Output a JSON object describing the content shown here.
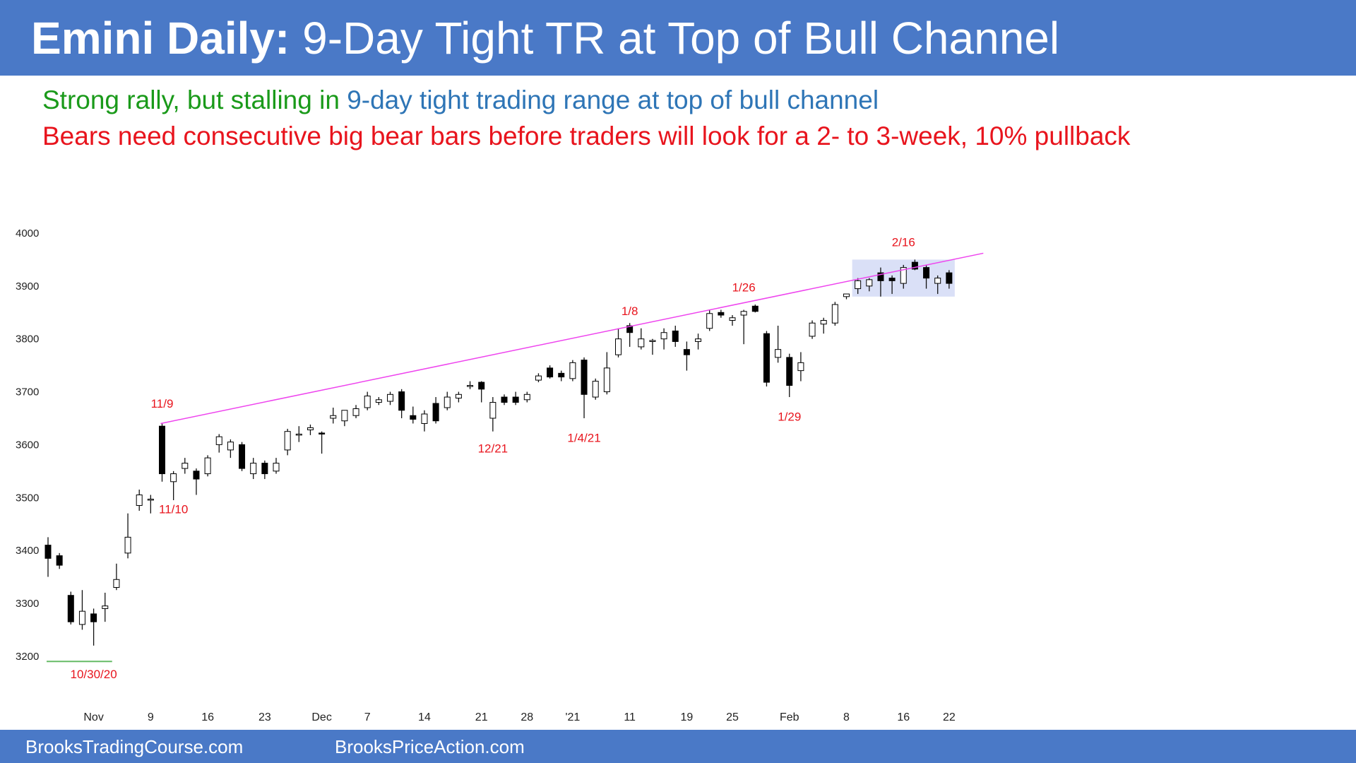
{
  "header": {
    "title_bold": "Emini Daily:",
    "title_rest": "9-Day Tight TR at Top of Bull Channel"
  },
  "subtitle": {
    "line1_part1": "Strong rally, but stalling in",
    "line1_part2": "9-day tight trading range at top of bull channel",
    "line2": "Bears need consecutive big bear bars before traders will look for a 2- to 3-week, 10% pullback"
  },
  "colors": {
    "header_bg": "#4a79c7",
    "green_text": "#1a9a1a",
    "blue_text": "#2e75b6",
    "red_text": "#e8141d",
    "channel_line": "#ee44ee",
    "range_box": "#cdd6f4",
    "support_line": "#66bb66",
    "annotation": "#e8141d"
  },
  "footer": {
    "left": "BrooksTradingCourse.com",
    "right": "BrooksPriceAction.com"
  },
  "chart_data": {
    "type": "candlestick",
    "title": "",
    "xlabel": "",
    "ylabel": "",
    "ylim": [
      3180,
      4020
    ],
    "y_ticks": [
      3200,
      3300,
      3400,
      3500,
      3600,
      3700,
      3800,
      3900,
      4000
    ],
    "x_tick_labels": [
      {
        "label": "Nov",
        "bar": 4
      },
      {
        "label": "9",
        "bar": 9
      },
      {
        "label": "16",
        "bar": 14
      },
      {
        "label": "23",
        "bar": 19
      },
      {
        "label": "Dec",
        "bar": 24
      },
      {
        "label": "7",
        "bar": 28
      },
      {
        "label": "14",
        "bar": 33
      },
      {
        "label": "21",
        "bar": 38
      },
      {
        "label": "28",
        "bar": 42
      },
      {
        "label": "'21",
        "bar": 46
      },
      {
        "label": "11",
        "bar": 51
      },
      {
        "label": "19",
        "bar": 56
      },
      {
        "label": "25",
        "bar": 60
      },
      {
        "label": "Feb",
        "bar": 65
      },
      {
        "label": "8",
        "bar": 70
      },
      {
        "label": "16",
        "bar": 75
      },
      {
        "label": "22",
        "bar": 79
      }
    ],
    "ohlc": [
      [
        3410,
        3425,
        3350,
        3385
      ],
      [
        3390,
        3395,
        3365,
        3372
      ],
      [
        3315,
        3322,
        3260,
        3265
      ],
      [
        3260,
        3325,
        3250,
        3285
      ],
      [
        3280,
        3290,
        3220,
        3265
      ],
      [
        3290,
        3320,
        3265,
        3295
      ],
      [
        3330,
        3375,
        3325,
        3345
      ],
      [
        3395,
        3470,
        3385,
        3425
      ],
      [
        3485,
        3515,
        3475,
        3505
      ],
      [
        3495,
        3505,
        3470,
        3497
      ],
      [
        3635,
        3640,
        3530,
        3545
      ],
      [
        3530,
        3550,
        3495,
        3545
      ],
      [
        3555,
        3575,
        3545,
        3565
      ],
      [
        3550,
        3555,
        3505,
        3535
      ],
      [
        3545,
        3580,
        3540,
        3575
      ],
      [
        3600,
        3620,
        3585,
        3615
      ],
      [
        3590,
        3610,
        3575,
        3605
      ],
      [
        3600,
        3605,
        3550,
        3555
      ],
      [
        3545,
        3575,
        3535,
        3565
      ],
      [
        3565,
        3570,
        3535,
        3545
      ],
      [
        3550,
        3575,
        3545,
        3565
      ],
      [
        3590,
        3630,
        3580,
        3625
      ],
      [
        3618,
        3635,
        3605,
        3620
      ],
      [
        3628,
        3638,
        3618,
        3632
      ],
      [
        3622,
        3625,
        3583,
        3620
      ],
      [
        3650,
        3670,
        3640,
        3655
      ],
      [
        3645,
        3665,
        3635,
        3665
      ],
      [
        3655,
        3675,
        3650,
        3668
      ],
      [
        3670,
        3700,
        3665,
        3692
      ],
      [
        3680,
        3690,
        3675,
        3685
      ],
      [
        3682,
        3700,
        3675,
        3695
      ],
      [
        3700,
        3705,
        3650,
        3665
      ],
      [
        3655,
        3672,
        3640,
        3648
      ],
      [
        3640,
        3665,
        3625,
        3658
      ],
      [
        3678,
        3690,
        3640,
        3645
      ],
      [
        3670,
        3700,
        3665,
        3690
      ],
      [
        3688,
        3700,
        3680,
        3695
      ],
      [
        3710,
        3720,
        3705,
        3712
      ],
      [
        3718,
        3720,
        3680,
        3705
      ],
      [
        3650,
        3690,
        3625,
        3680
      ],
      [
        3690,
        3695,
        3675,
        3680
      ],
      [
        3690,
        3700,
        3675,
        3680
      ],
      [
        3685,
        3700,
        3680,
        3695
      ],
      [
        3722,
        3735,
        3718,
        3730
      ],
      [
        3745,
        3750,
        3725,
        3728
      ],
      [
        3735,
        3740,
        3720,
        3728
      ],
      [
        3725,
        3760,
        3720,
        3755
      ],
      [
        3760,
        3765,
        3650,
        3695
      ],
      [
        3690,
        3725,
        3685,
        3720
      ],
      [
        3700,
        3775,
        3695,
        3745
      ],
      [
        3770,
        3820,
        3765,
        3800
      ],
      [
        3825,
        3830,
        3785,
        3812
      ],
      [
        3785,
        3820,
        3780,
        3800
      ],
      [
        3795,
        3800,
        3770,
        3797
      ],
      [
        3800,
        3820,
        3780,
        3812
      ],
      [
        3815,
        3825,
        3785,
        3795
      ],
      [
        3780,
        3795,
        3740,
        3770
      ],
      [
        3795,
        3810,
        3780,
        3800
      ],
      [
        3820,
        3855,
        3815,
        3848
      ],
      [
        3850,
        3855,
        3840,
        3845
      ],
      [
        3835,
        3845,
        3825,
        3840
      ],
      [
        3845,
        3855,
        3790,
        3852
      ],
      [
        3862,
        3865,
        3850,
        3852
      ],
      [
        3810,
        3815,
        3710,
        3718
      ],
      [
        3765,
        3825,
        3755,
        3780
      ],
      [
        3765,
        3772,
        3690,
        3712
      ],
      [
        3740,
        3775,
        3720,
        3755
      ],
      [
        3805,
        3835,
        3800,
        3830
      ],
      [
        3828,
        3840,
        3810,
        3835
      ],
      [
        3830,
        3870,
        3825,
        3865
      ],
      [
        3880,
        3885,
        3875,
        3885
      ],
      [
        3895,
        3915,
        3885,
        3910
      ],
      [
        3900,
        3915,
        3890,
        3912
      ],
      [
        3925,
        3935,
        3880,
        3910
      ],
      [
        3915,
        3920,
        3885,
        3910
      ],
      [
        3905,
        3940,
        3895,
        3935
      ],
      [
        3945,
        3950,
        3930,
        3932
      ],
      [
        3935,
        3940,
        3895,
        3915
      ],
      [
        3905,
        3920,
        3885,
        3915
      ],
      [
        3925,
        3930,
        3895,
        3905
      ]
    ],
    "annotations": [
      {
        "text": "11/9",
        "bar": 10,
        "price": 3670
      },
      {
        "text": "11/10",
        "bar": 11,
        "price": 3470
      },
      {
        "text": "10/30/20",
        "bar": 4,
        "price": 3158
      },
      {
        "text": "12/21",
        "bar": 39,
        "price": 3585
      },
      {
        "text": "1/4/21",
        "bar": 47,
        "price": 3605
      },
      {
        "text": "1/8",
        "bar": 51,
        "price": 3845
      },
      {
        "text": "1/26",
        "bar": 61,
        "price": 3890
      },
      {
        "text": "1/29",
        "bar": 65,
        "price": 3645
      },
      {
        "text": "2/16",
        "bar": 75,
        "price": 3975
      }
    ],
    "channel_line": {
      "bar_start": 10,
      "price_start": 3640,
      "bar_end": 82,
      "price_end": 3962
    },
    "range_box": {
      "bar_start": 71,
      "bar_end": 79,
      "price_low": 3880,
      "price_high": 3950
    },
    "support_line": {
      "bar_start": 0,
      "bar_end": 5,
      "price": 3190
    }
  }
}
